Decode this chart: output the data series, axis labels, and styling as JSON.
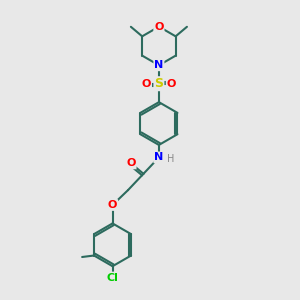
{
  "bg_color": "#e8e8e8",
  "bond_color": "#2d6b5e",
  "bond_width": 1.5,
  "atom_colors": {
    "O": "#ff0000",
    "N": "#0000ff",
    "S": "#cccc00",
    "Cl": "#00cc00",
    "C": "#2d6b5e",
    "H": "#888888"
  },
  "font_size": 8
}
